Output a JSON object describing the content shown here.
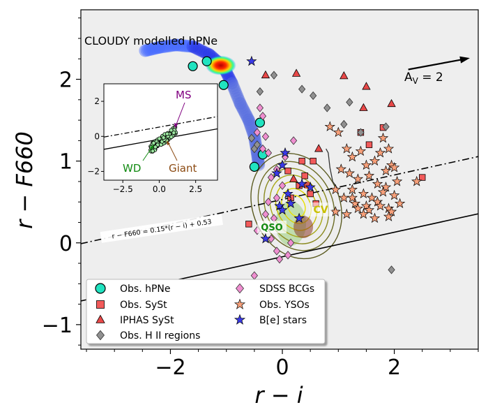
{
  "chart_data": {
    "type": "scatter",
    "title": "",
    "xlabel": "r − i",
    "ylabel": "r − F660",
    "xlim": [
      -3.6,
      3.5
    ],
    "ylim": [
      -1.3,
      2.85
    ],
    "xticks": [
      -2,
      0,
      2
    ],
    "yticks": [
      -1,
      0,
      1,
      2
    ],
    "xtick_labels": [
      "−2",
      "0",
      "2"
    ],
    "ytick_labels": [
      "−1",
      "0",
      "1",
      "2"
    ],
    "grid": false,
    "legend_position": "bottom-left",
    "background": "#eeeeee",
    "annotations": {
      "cloudy": "CLOUDY modelled hPNe",
      "av": "A",
      "av_sub": "V",
      "av_val": " = 2",
      "qso": "QSO",
      "cv": "CV",
      "line_eq": "r − F660 = 0.15*(r − i) + 0.53"
    },
    "lines": [
      {
        "style": "dashdot",
        "slope": 0.15,
        "intercept": 0.53
      },
      {
        "style": "solid",
        "slope": 0.15,
        "intercept": -0.17
      }
    ],
    "av_vector": {
      "x0": 2.25,
      "y0": 2.12,
      "x1": 3.35,
      "y1": 2.26
    },
    "legend": [
      {
        "key": "hpne",
        "label": "Obs. hPNe"
      },
      {
        "key": "syst",
        "label": "Obs. SySt"
      },
      {
        "key": "iphas",
        "label": "IPHAS SySt"
      },
      {
        "key": "hii",
        "label": "Obs. H II regions"
      },
      {
        "key": "bcg",
        "label": "SDSS BCGs"
      },
      {
        "key": "yso",
        "label": "Obs. YSOs"
      },
      {
        "key": "be",
        "label": "B[e] stars"
      }
    ],
    "series": [
      {
        "key": "hpne",
        "marker": "circle",
        "color": "#20e3c0",
        "x": [
          -1.35,
          -1.6,
          -1.05,
          -0.4,
          -0.35,
          -0.5
        ],
        "y": [
          2.22,
          2.16,
          1.93,
          1.47,
          1.08,
          0.93
        ]
      },
      {
        "key": "syst",
        "marker": "square",
        "color": "#f25a5a",
        "x": [
          -0.6,
          1.4,
          1.55,
          1.8,
          0.35,
          0.55,
          0.1,
          0.4,
          0.3,
          0.5,
          0.15,
          0.6,
          2.5
        ],
        "y": [
          0.23,
          1.35,
          1.2,
          1.41,
          1.0,
          1.0,
          0.88,
          0.82,
          0.7,
          0.6,
          0.55,
          0.48,
          0.8
        ]
      },
      {
        "key": "iphas",
        "marker": "triangle",
        "color": "#e84848",
        "x": [
          -0.3,
          0.25,
          1.1,
          1.5,
          1.45,
          0.65,
          1.95,
          0.2
        ],
        "y": [
          2.05,
          2.07,
          2.04,
          1.91,
          1.65,
          1.15,
          1.7,
          0.78
        ]
      },
      {
        "key": "hii",
        "marker": "diamond",
        "color": "#909090",
        "x": [
          -0.15,
          0.35,
          -0.4,
          0.55,
          -0.55,
          -0.5,
          -0.45,
          1.2,
          0.8,
          1.1,
          1.4,
          1.85,
          1.95
        ],
        "y": [
          2.05,
          1.88,
          1.85,
          1.8,
          1.28,
          1.15,
          1.2,
          1.72,
          1.65,
          1.45,
          1.35,
          1.42,
          -0.33
        ]
      },
      {
        "key": "bcg",
        "marker": "diamond",
        "color": "#ef8ed0",
        "x": [
          -0.4,
          -0.35,
          -0.3,
          -0.45,
          0.05,
          0.2,
          -0.35,
          -0.25,
          -0.1,
          -0.2,
          0.0,
          -0.1,
          -0.25,
          -0.3,
          -0.15,
          -0.45,
          0.15,
          -0.1,
          0.1,
          -0.05,
          -0.5,
          -0.2
        ],
        "y": [
          1.65,
          1.55,
          1.3,
          1.35,
          1.05,
          1.25,
          1.15,
          1.1,
          0.9,
          0.8,
          0.7,
          0.55,
          0.5,
          0.35,
          0.3,
          0.15,
          0.0,
          -0.1,
          -0.15,
          -0.2,
          -0.4,
          0.05
        ]
      },
      {
        "key": "yso",
        "marker": "star",
        "color": "#f7a07a",
        "x": [
          0.85,
          1.0,
          1.15,
          1.25,
          1.4,
          1.5,
          1.65,
          1.75,
          1.85,
          1.95,
          2.05,
          1.05,
          1.2,
          1.35,
          1.55,
          1.7,
          1.85,
          1.25,
          1.45,
          1.6,
          1.8,
          2.0,
          1.1,
          1.3,
          1.5,
          1.7,
          1.9,
          2.1,
          0.95,
          1.15,
          1.35,
          1.55,
          1.75,
          1.95,
          2.4,
          0.95,
          1.25,
          1.45,
          1.65,
          1.9,
          1.8,
          1.9,
          2.0
        ],
        "y": [
          1.42,
          1.35,
          1.15,
          1.05,
          1.12,
          0.95,
          1.0,
          1.1,
          0.88,
          0.95,
          0.75,
          0.9,
          0.85,
          0.78,
          0.82,
          0.72,
          0.68,
          0.65,
          0.6,
          0.55,
          0.62,
          0.58,
          0.55,
          0.48,
          0.45,
          0.5,
          0.42,
          0.48,
          0.38,
          0.35,
          0.42,
          0.4,
          0.45,
          0.38,
          0.75,
          0.65,
          0.55,
          0.35,
          0.3,
          0.32,
          1.28,
          1.15,
          0.92
        ]
      },
      {
        "key": "be",
        "marker": "star",
        "color": "#3a3ae8",
        "x": [
          -0.55,
          0.05,
          0.0,
          -0.1,
          0.35,
          0.5,
          0.1,
          0.15,
          -0.05,
          0.0,
          0.3,
          -0.3
        ],
        "y": [
          2.22,
          1.1,
          0.95,
          0.85,
          0.72,
          0.68,
          0.6,
          0.48,
          0.45,
          0.4,
          0.3,
          0.05
        ]
      }
    ],
    "inset": {
      "xlim": [
        -3.8,
        4.0
      ],
      "ylim": [
        -2.5,
        3.0
      ],
      "xticks": [
        -2.5,
        0.0,
        2.5
      ],
      "yticks": [
        -2,
        0,
        2
      ],
      "xtick_labels": [
        "−2.5",
        "0.0",
        "2.5"
      ],
      "ytick_labels": [
        "−2",
        "0",
        "2"
      ],
      "labels": {
        "ms": "MS",
        "wd": "WD",
        "giant": "Giant"
      }
    }
  }
}
